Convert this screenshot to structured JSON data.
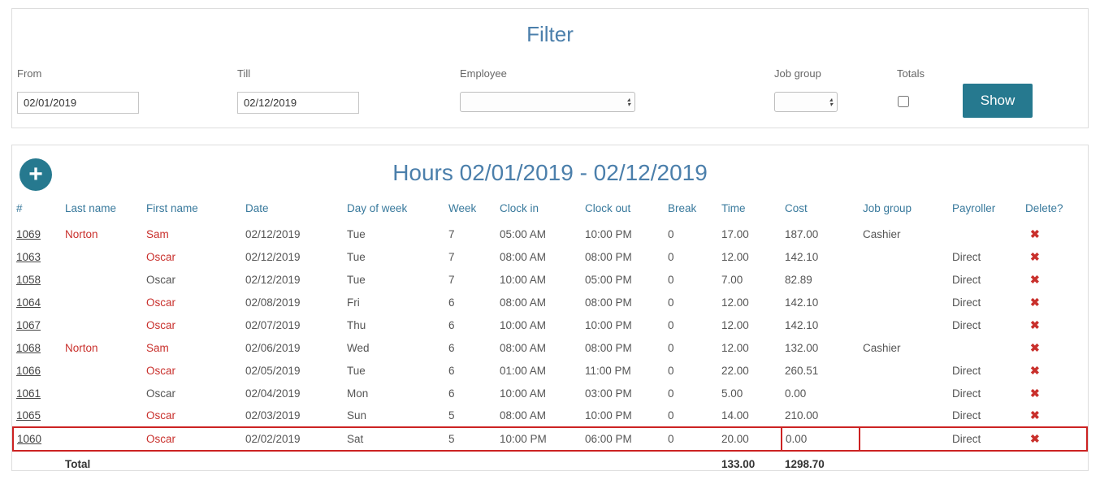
{
  "filter": {
    "title": "Filter",
    "from": {
      "label": "From",
      "value": "02/01/2019"
    },
    "till": {
      "label": "Till",
      "value": "02/12/2019"
    },
    "employee": {
      "label": "Employee",
      "value": ""
    },
    "job_group": {
      "label": "Job group",
      "value": ""
    },
    "totals": {
      "label": "Totals",
      "checked": false
    },
    "show_button_label": "Show"
  },
  "hours": {
    "title": "Hours 02/01/2019 - 02/12/2019",
    "columns": [
      "#",
      "Last name",
      "First name",
      "Date",
      "Day of week",
      "Week",
      "Clock in",
      "Clock out",
      "Break",
      "Time",
      "Cost",
      "Job group",
      "Payroller",
      "Delete?"
    ],
    "rows": [
      {
        "id": "1069",
        "last_name": "Norton",
        "first_name": "Sam",
        "date": "02/12/2019",
        "day_of_week": "Tue",
        "week": "7",
        "clock_in": "05:00 AM",
        "clock_out": "10:00 PM",
        "break": "0",
        "time": "17.00",
        "cost": "187.00",
        "job_group": "Cashier",
        "payroller": "",
        "name_red": true,
        "highlighted": false,
        "cost_boxed": false
      },
      {
        "id": "1063",
        "last_name": "",
        "first_name": "Oscar",
        "date": "02/12/2019",
        "day_of_week": "Tue",
        "week": "7",
        "clock_in": "08:00 AM",
        "clock_out": "08:00 PM",
        "break": "0",
        "time": "12.00",
        "cost": "142.10",
        "job_group": "",
        "payroller": "Direct",
        "name_red": true,
        "highlighted": false,
        "cost_boxed": false
      },
      {
        "id": "1058",
        "last_name": "",
        "first_name": "Oscar",
        "date": "02/12/2019",
        "day_of_week": "Tue",
        "week": "7",
        "clock_in": "10:00 AM",
        "clock_out": "05:00 PM",
        "break": "0",
        "time": "7.00",
        "cost": "82.89",
        "job_group": "",
        "payroller": "Direct",
        "name_red": false,
        "highlighted": false,
        "cost_boxed": false
      },
      {
        "id": "1064",
        "last_name": "",
        "first_name": "Oscar",
        "date": "02/08/2019",
        "day_of_week": "Fri",
        "week": "6",
        "clock_in": "08:00 AM",
        "clock_out": "08:00 PM",
        "break": "0",
        "time": "12.00",
        "cost": "142.10",
        "job_group": "",
        "payroller": "Direct",
        "name_red": true,
        "highlighted": false,
        "cost_boxed": false
      },
      {
        "id": "1067",
        "last_name": "",
        "first_name": "Oscar",
        "date": "02/07/2019",
        "day_of_week": "Thu",
        "week": "6",
        "clock_in": "10:00 AM",
        "clock_out": "10:00 PM",
        "break": "0",
        "time": "12.00",
        "cost": "142.10",
        "job_group": "",
        "payroller": "Direct",
        "name_red": true,
        "highlighted": false,
        "cost_boxed": false
      },
      {
        "id": "1068",
        "last_name": "Norton",
        "first_name": "Sam",
        "date": "02/06/2019",
        "day_of_week": "Wed",
        "week": "6",
        "clock_in": "08:00 AM",
        "clock_out": "08:00 PM",
        "break": "0",
        "time": "12.00",
        "cost": "132.00",
        "job_group": "Cashier",
        "payroller": "",
        "name_red": true,
        "highlighted": false,
        "cost_boxed": false
      },
      {
        "id": "1066",
        "last_name": "",
        "first_name": "Oscar",
        "date": "02/05/2019",
        "day_of_week": "Tue",
        "week": "6",
        "clock_in": "01:00 AM",
        "clock_out": "11:00 PM",
        "break": "0",
        "time": "22.00",
        "cost": "260.51",
        "job_group": "",
        "payroller": "Direct",
        "name_red": true,
        "highlighted": false,
        "cost_boxed": false
      },
      {
        "id": "1061",
        "last_name": "",
        "first_name": "Oscar",
        "date": "02/04/2019",
        "day_of_week": "Mon",
        "week": "6",
        "clock_in": "10:00 AM",
        "clock_out": "03:00 PM",
        "break": "0",
        "time": "5.00",
        "cost": "0.00",
        "job_group": "",
        "payroller": "Direct",
        "name_red": false,
        "highlighted": false,
        "cost_boxed": false
      },
      {
        "id": "1065",
        "last_name": "",
        "first_name": "Oscar",
        "date": "02/03/2019",
        "day_of_week": "Sun",
        "week": "5",
        "clock_in": "08:00 AM",
        "clock_out": "10:00 PM",
        "break": "0",
        "time": "14.00",
        "cost": "210.00",
        "job_group": "",
        "payroller": "Direct",
        "name_red": true,
        "highlighted": false,
        "cost_boxed": false
      },
      {
        "id": "1060",
        "last_name": "",
        "first_name": "Oscar",
        "date": "02/02/2019",
        "day_of_week": "Sat",
        "week": "5",
        "clock_in": "10:00 PM",
        "clock_out": "06:00 PM",
        "break": "0",
        "time": "20.00",
        "cost": "0.00",
        "job_group": "",
        "payroller": "Direct",
        "name_red": true,
        "highlighted": true,
        "cost_boxed": true
      }
    ],
    "total": {
      "label": "Total",
      "time": "133.00",
      "cost": "1298.70"
    }
  },
  "icons": {
    "add": "+",
    "delete": "✖",
    "select_arrow_up": "▴",
    "select_arrow_down": "▾"
  },
  "colors": {
    "accent_teal": "#26798f",
    "title_blue": "#4b7fab",
    "header_blue": "#38799c",
    "name_red": "#c9302c",
    "highlight_red": "#cc2222"
  }
}
